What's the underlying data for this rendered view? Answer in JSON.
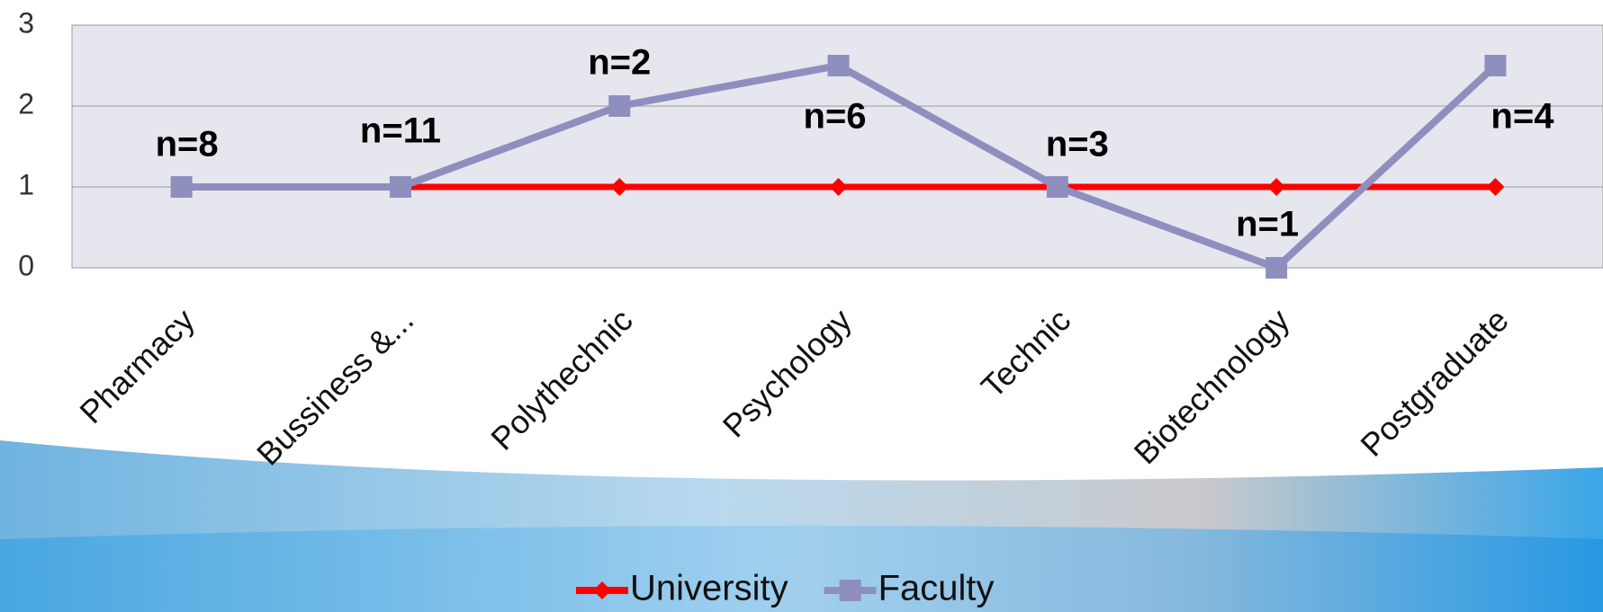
{
  "chart_data": {
    "type": "line",
    "categories": [
      "Pharmacy",
      "Bussiness &...",
      "Polythechnic",
      "Psychology",
      "Technic",
      "Biotechnology",
      "Postgraduate"
    ],
    "series": [
      {
        "name": "University",
        "color": "#ff0000",
        "marker": "diamond",
        "values": [
          1,
          1,
          1,
          1,
          1,
          1,
          1
        ]
      },
      {
        "name": "Faculty",
        "color": "#8e8fbf",
        "marker": "square",
        "values": [
          1,
          1,
          2,
          2.5,
          1,
          0,
          2.5
        ]
      }
    ],
    "annotations": [
      "n=8",
      "n=11",
      "n=2",
      "n=6",
      "n=3",
      "n=1",
      "n=4"
    ],
    "ylim": [
      0,
      3
    ],
    "yticks": [
      0,
      1,
      2,
      3
    ],
    "grid": true,
    "legend": "bottom"
  }
}
